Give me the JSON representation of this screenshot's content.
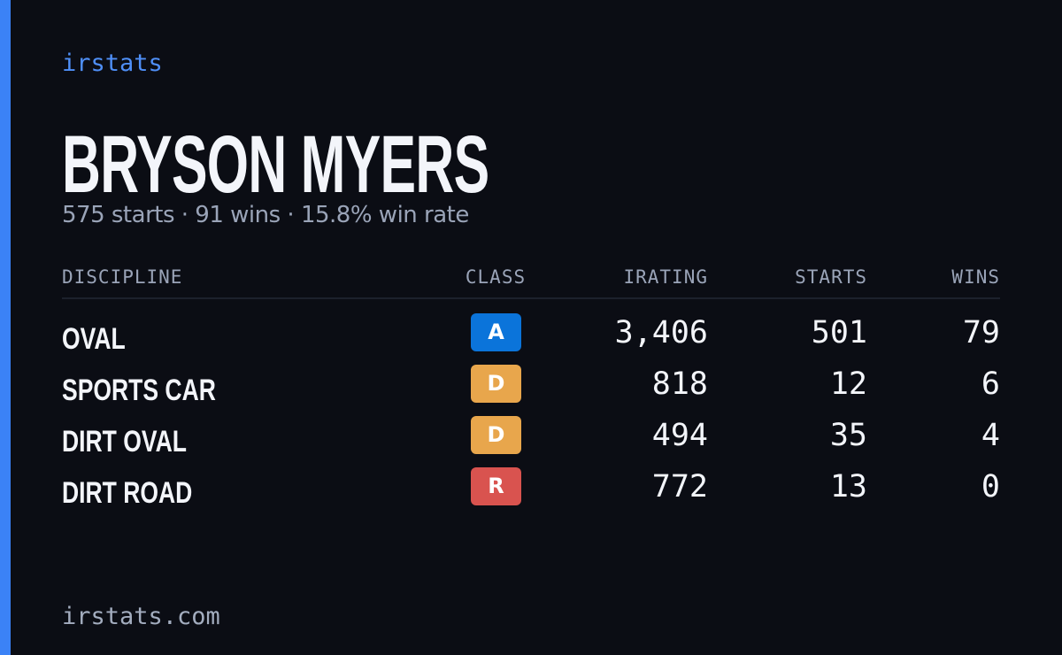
{
  "header": {
    "brand": "irstats",
    "name": "BRYSON MYERS",
    "summary": "575 starts · 91 wins · 15.8% win rate"
  },
  "table": {
    "columns": [
      "DISCIPLINE",
      "CLASS",
      "IRATING",
      "STARTS",
      "WINS"
    ],
    "rows": [
      [
        "OVAL",
        "A",
        "3,406",
        "501",
        "79"
      ],
      [
        "SPORTS CAR",
        "D",
        "818",
        "12",
        "6"
      ],
      [
        "DIRT OVAL",
        "D",
        "494",
        "35",
        "4"
      ],
      [
        "DIRT ROAD",
        "R",
        "772",
        "13",
        "0"
      ]
    ],
    "class_colors": [
      "#0b74da",
      "#e8a64c",
      "#e8a64c",
      "#d9534f"
    ]
  },
  "footer": {
    "url": "irstats.com"
  }
}
